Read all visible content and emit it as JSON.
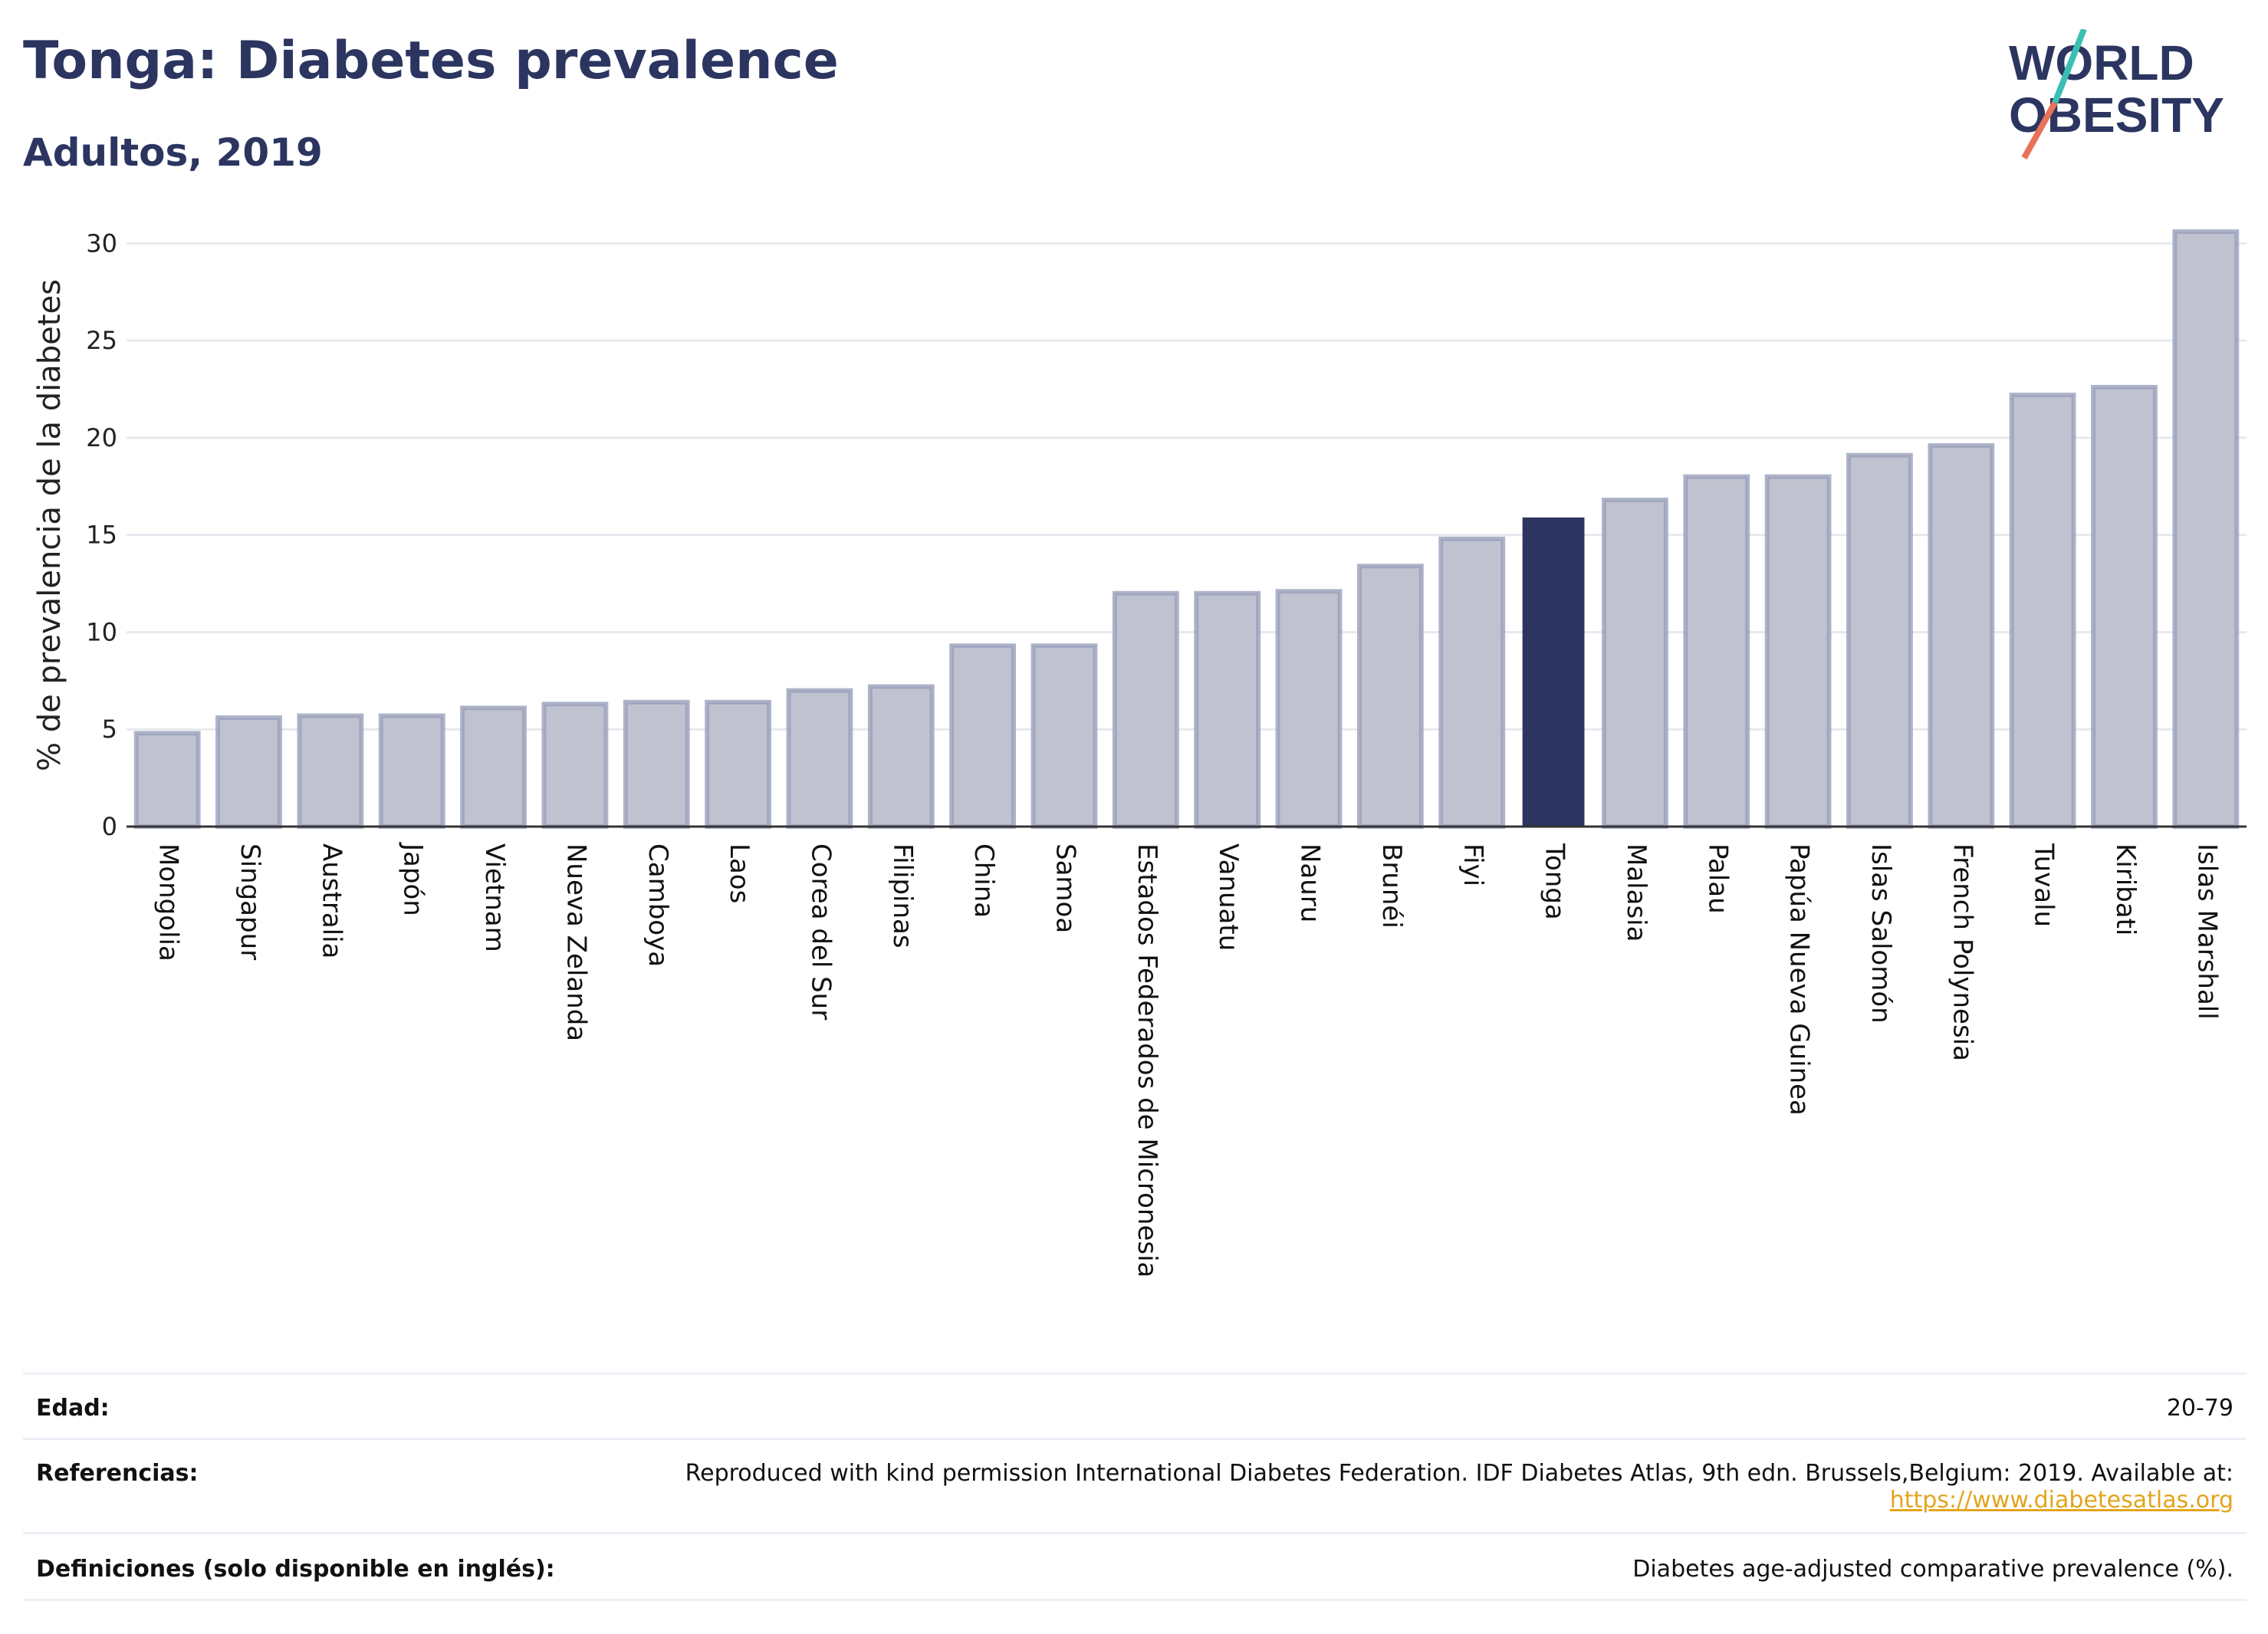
{
  "header": {
    "title": "Tonga: Diabetes prevalence",
    "subtitle": "Adultos, 2019"
  },
  "logo": {
    "line1": "WORLD",
    "line2": "OBESITY",
    "accent_teal": "#3bbfb4",
    "accent_coral": "#e8735a",
    "text_color": "#2b3560"
  },
  "colors": {
    "bar_fill": "#c0c3cf",
    "bar_stroke": "#9aa0bb",
    "highlight": "#2b3560",
    "grid": "#e8e9ef"
  },
  "chart_data": {
    "type": "bar",
    "title": "Tonga: Diabetes prevalence",
    "subtitle": "Adultos, 2019",
    "xlabel": "",
    "ylabel": "% de prevalencia de la diabetes",
    "ylim": [
      0,
      31
    ],
    "yticks": [
      0,
      5,
      10,
      15,
      20,
      25,
      30
    ],
    "grid": true,
    "highlight": "Tonga",
    "categories": [
      "Mongolia",
      "Singapur",
      "Australia",
      "Japón",
      "Vietnam",
      "Nueva Zelanda",
      "Camboya",
      "Laos",
      "Corea del Sur",
      "Filipinas",
      "China",
      "Samoa",
      "Estados Federados de Micronesia",
      "Vanuatu",
      "Nauru",
      "Brunéi",
      "Fiyi",
      "Tonga",
      "Malasia",
      "Palau",
      "Papúa Nueva Guinea",
      "Islas Salomón",
      "French Polynesia",
      "Tuvalu",
      "Kiribati",
      "Islas Marshall"
    ],
    "values": [
      4.8,
      5.6,
      5.7,
      5.7,
      6.1,
      6.3,
      6.4,
      6.4,
      7.0,
      7.2,
      9.3,
      9.3,
      12.0,
      12.0,
      12.1,
      13.4,
      14.8,
      15.9,
      16.8,
      18.0,
      18.0,
      19.1,
      19.6,
      22.2,
      22.6,
      30.6
    ]
  },
  "footer": {
    "age_label": "Edad:",
    "age_value": "20-79",
    "refs_label": "Referencias:",
    "refs_text": "Reproduced with kind permission International Diabetes Federation. IDF Diabetes Atlas, 9th edn. Brussels,Belgium: 2019. Available at:",
    "refs_link": "https://www.diabetesatlas.org",
    "defs_label": "Definiciones (solo disponible en inglés):",
    "defs_text": "Diabetes age-adjusted comparative prevalence (%)."
  }
}
